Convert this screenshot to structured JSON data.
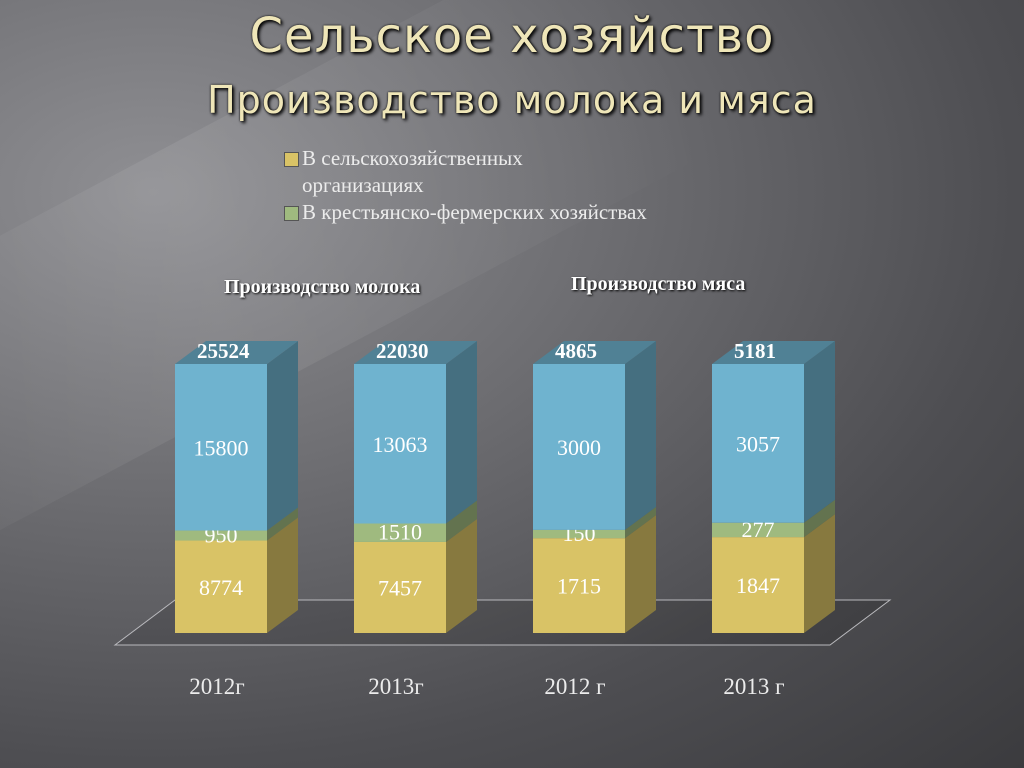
{
  "title": "Сельское хозяйство",
  "subtitle": "Производство молока и мяса",
  "legend": [
    {
      "label": "В сельскохозяйственных организациях",
      "color": "#d9c366"
    },
    {
      "label": "В крестьянско-фермерских хозяйствах",
      "color": "#9fba7f"
    }
  ],
  "group_labels": [
    "Производство молока",
    "Производство мяса"
  ],
  "chart_data": {
    "type": "bar",
    "stacked": true,
    "three_d": true,
    "categories": [
      "2012г",
      "2013г",
      "2012 г",
      "2013 г"
    ],
    "series": [
      {
        "name": "В сельскохозяйственных организациях",
        "values": [
          8774,
          7457,
          1715,
          1847
        ],
        "color": "#d9c366"
      },
      {
        "name": "В крестьянско-фермерских хозяйствах",
        "values": [
          950,
          1510,
          150,
          277
        ],
        "color": "#9fba7f"
      },
      {
        "values": [
          15800,
          13063,
          3000,
          3057
        ],
        "color": "#6fb3cf"
      }
    ],
    "totals": [
      25524,
      22030,
      4865,
      5181
    ],
    "grid": false
  }
}
